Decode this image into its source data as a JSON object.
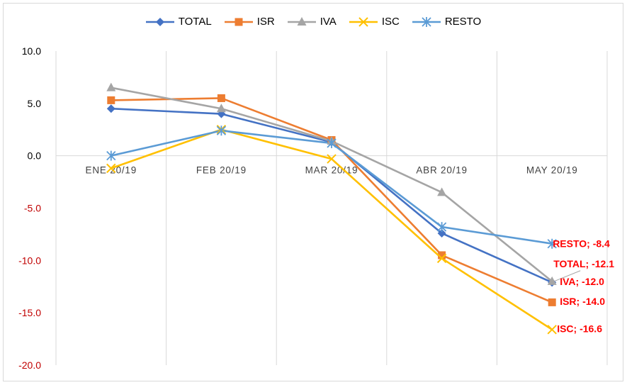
{
  "chart_data": {
    "type": "line",
    "categories": [
      "ENE 20/19",
      "FEB 20/19",
      "MAR 20/19",
      "ABR 20/19",
      "MAY 20/19"
    ],
    "ylim": [
      -20,
      10
    ],
    "yticks": [
      "10.0",
      "5.0",
      "0.0",
      "-5.0",
      "-10.0",
      "-15.0",
      "-20.0"
    ],
    "ytick_values": [
      10,
      5,
      0,
      -5,
      -10,
      -15,
      -20
    ],
    "grid": "vertical",
    "legend_position": "top",
    "series": [
      {
        "name": "TOTAL",
        "color": "#4472c4",
        "marker": "diamond",
        "values": [
          4.5,
          4.0,
          1.3,
          -7.4,
          -12.1
        ]
      },
      {
        "name": "ISR",
        "color": "#ed7d31",
        "marker": "square",
        "values": [
          5.3,
          5.5,
          1.5,
          -9.5,
          -14.0
        ]
      },
      {
        "name": "IVA",
        "color": "#a5a5a5",
        "marker": "triangle",
        "values": [
          6.5,
          4.5,
          1.4,
          -3.5,
          -12.0
        ]
      },
      {
        "name": "ISC",
        "color": "#ffc000",
        "marker": "x",
        "values": [
          -1.2,
          2.5,
          -0.3,
          -9.8,
          -16.6
        ]
      },
      {
        "name": "RESTO",
        "color": "#5b9bd5",
        "marker": "asterisk",
        "values": [
          0.0,
          2.4,
          1.2,
          -6.8,
          -8.4
        ]
      }
    ],
    "annotations": [
      {
        "series": "RESTO",
        "text": "RESTO; -8.4"
      },
      {
        "series": "TOTAL",
        "text": "TOTAL; -12.1"
      },
      {
        "series": "IVA",
        "text": "IVA; -12.0"
      },
      {
        "series": "ISR",
        "text": "ISR; -14.0"
      },
      {
        "series": "ISC",
        "text": "ISC; -16.6"
      }
    ],
    "negative_tick_color": "#c00000",
    "annotation_color": "#ff0000"
  }
}
